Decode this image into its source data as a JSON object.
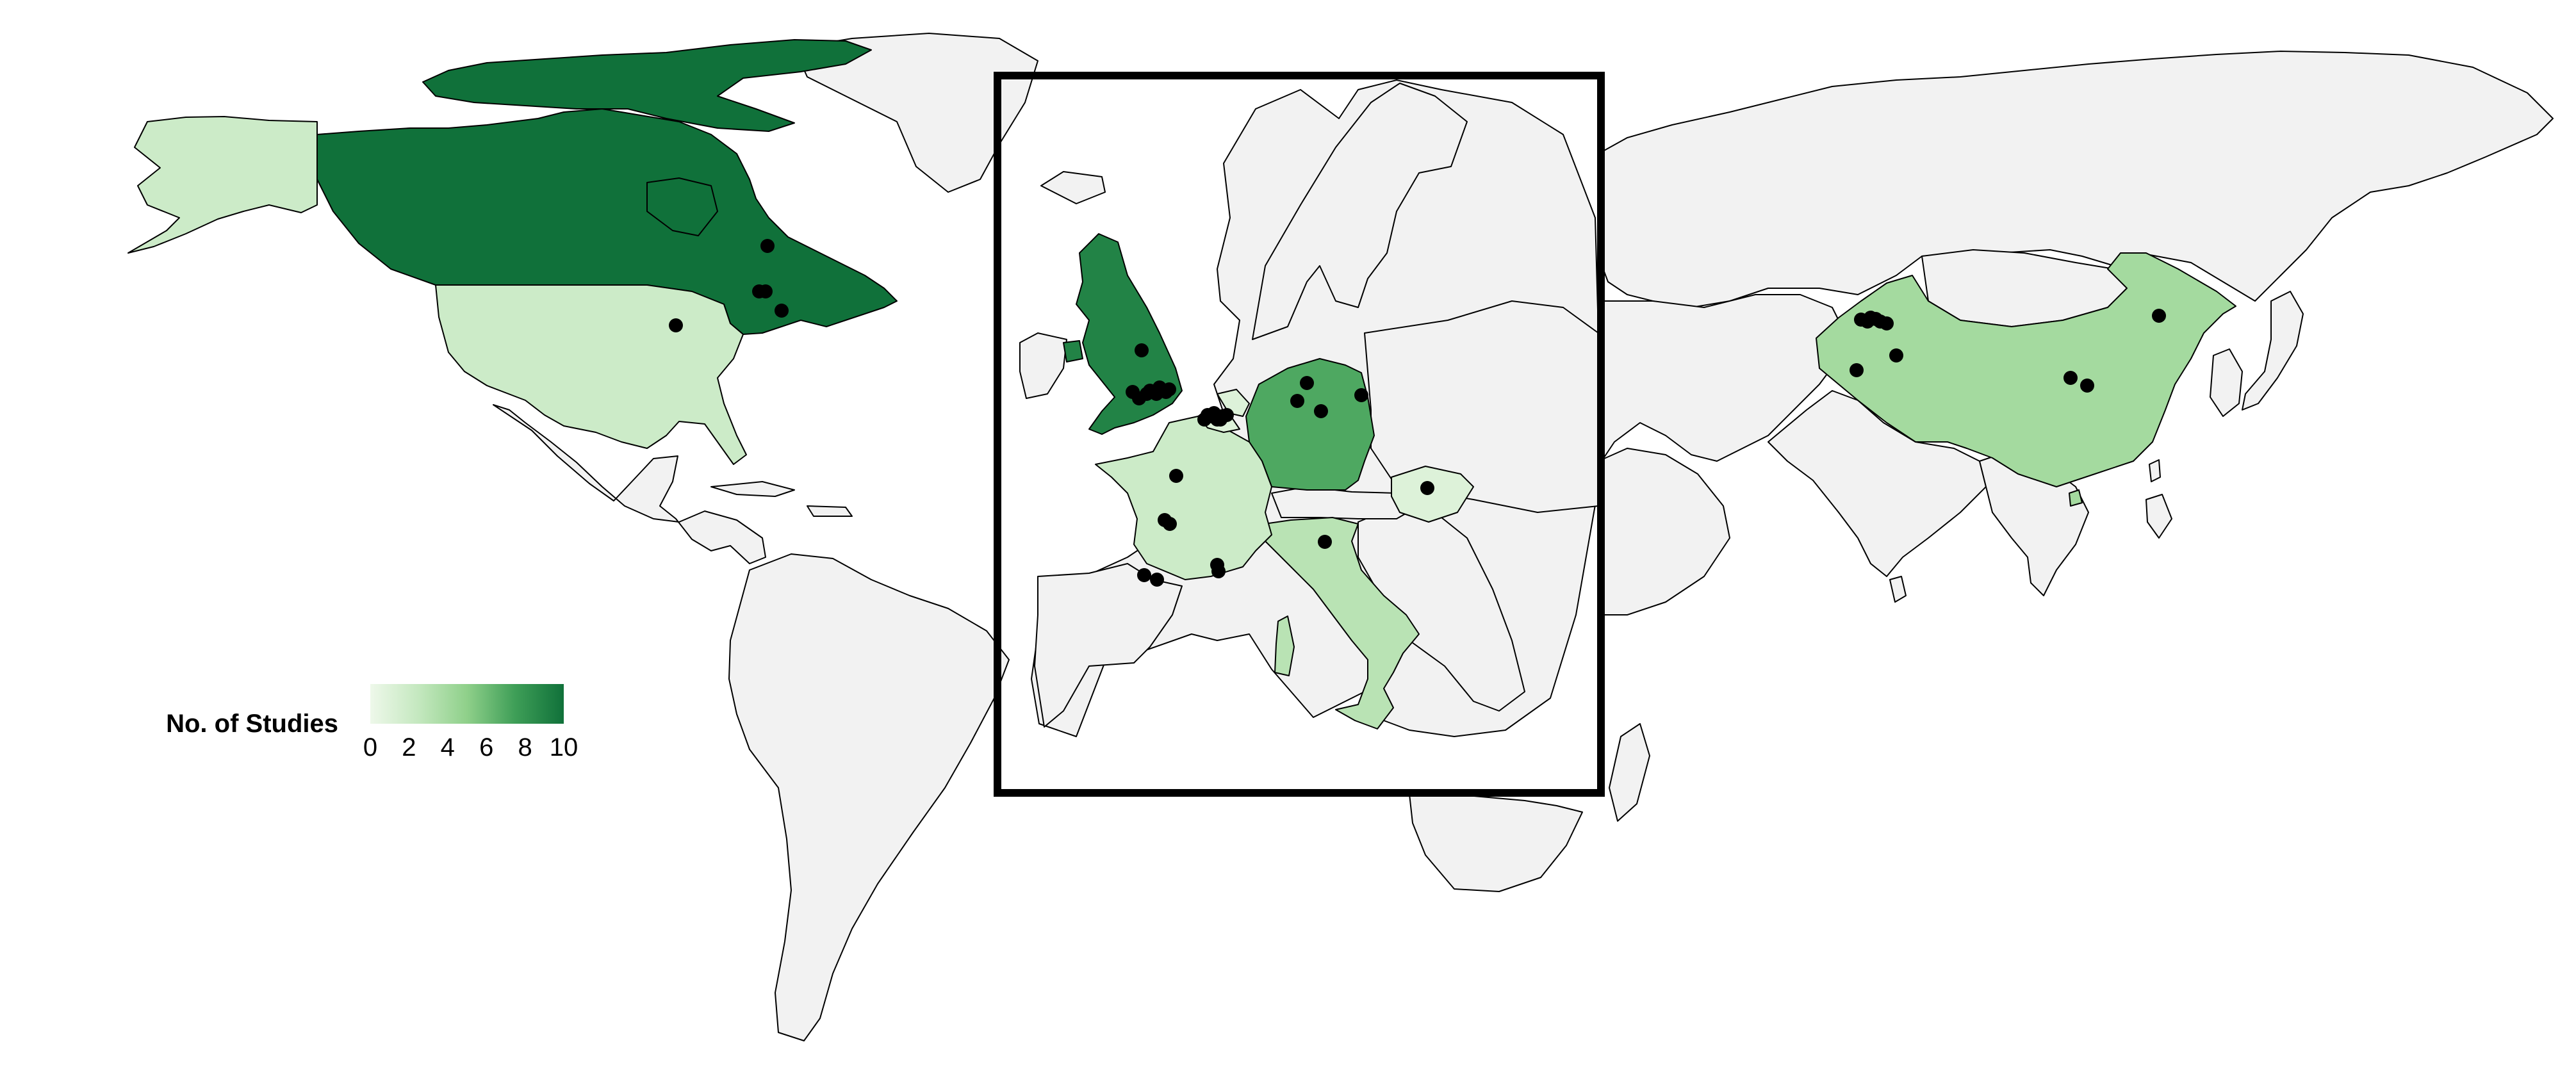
{
  "legend": {
    "title": "No. of Studies",
    "ticks": [
      "0",
      "2",
      "4",
      "6",
      "8",
      "10"
    ],
    "min": 0,
    "max": 10,
    "color_low": "#eef8ea",
    "color_high": "#10713a"
  },
  "colors": {
    "background": "#ffffff",
    "no_data_fill": "#f2f2f2",
    "country_border": "#000000",
    "inset_frame": "#000000",
    "study_point": "#000000"
  },
  "countries": [
    {
      "name": "Canada",
      "studies": 10
    },
    {
      "name": "United States",
      "studies": 2
    },
    {
      "name": "United Kingdom",
      "studies": 9
    },
    {
      "name": "Germany",
      "studies": 7
    },
    {
      "name": "China",
      "studies": 4
    },
    {
      "name": "Italy",
      "studies": 3
    },
    {
      "name": "France",
      "studies": 2
    },
    {
      "name": "Hungary",
      "studies": 1
    },
    {
      "name": "Belgium",
      "studies": 1
    },
    {
      "name": "Netherlands",
      "studies": 1
    }
  ],
  "inset": {
    "region": "Europe"
  }
}
